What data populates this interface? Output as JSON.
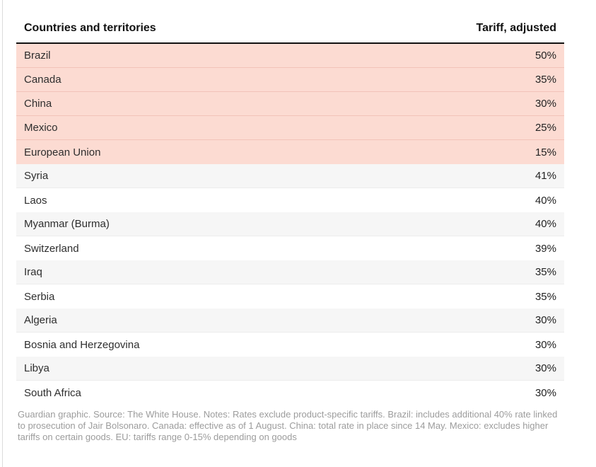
{
  "table": {
    "columns": [
      "Countries and territories",
      "Tariff, adjusted"
    ],
    "rows": [
      {
        "country": "Brazil",
        "tariff": "50%",
        "highlight": true
      },
      {
        "country": "Canada",
        "tariff": "35%",
        "highlight": true
      },
      {
        "country": "China",
        "tariff": "30%",
        "highlight": true
      },
      {
        "country": "Mexico",
        "tariff": "25%",
        "highlight": true
      },
      {
        "country": "European Union",
        "tariff": "15%",
        "highlight": true
      },
      {
        "country": "Syria",
        "tariff": "41%",
        "highlight": false
      },
      {
        "country": "Laos",
        "tariff": "40%",
        "highlight": false
      },
      {
        "country": "Myanmar (Burma)",
        "tariff": "40%",
        "highlight": false
      },
      {
        "country": "Switzerland",
        "tariff": "39%",
        "highlight": false
      },
      {
        "country": "Iraq",
        "tariff": "35%",
        "highlight": false
      },
      {
        "country": "Serbia",
        "tariff": "35%",
        "highlight": false
      },
      {
        "country": "Algeria",
        "tariff": "30%",
        "highlight": false
      },
      {
        "country": "Bosnia and Herzegovina",
        "tariff": "30%",
        "highlight": false
      },
      {
        "country": "Libya",
        "tariff": "30%",
        "highlight": false
      },
      {
        "country": "South Africa",
        "tariff": "30%",
        "highlight": false
      }
    ]
  },
  "chart_data": {
    "type": "table",
    "title": "",
    "categories": [
      "Brazil",
      "Canada",
      "China",
      "Mexico",
      "European Union",
      "Syria",
      "Laos",
      "Myanmar (Burma)",
      "Switzerland",
      "Iraq",
      "Serbia",
      "Algeria",
      "Bosnia and Herzegovina",
      "Libya",
      "South Africa"
    ],
    "values": [
      50,
      35,
      30,
      25,
      15,
      41,
      40,
      40,
      39,
      35,
      35,
      30,
      30,
      30,
      30
    ],
    "series_name": "Tariff, adjusted (%)",
    "highlighted_categories": [
      "Brazil",
      "Canada",
      "China",
      "Mexico",
      "European Union"
    ]
  },
  "footer": {
    "note": "Guardian graphic. Source: The White House. Notes: Rates exclude product-specific tariffs. Brazil: includes additional 40% rate linked to prosecution of Jair Bolsonaro. Canada: effective as of 1 August. China: total rate in place since 14 May. Mexico: excludes higher tariffs on certain goods. EU: tariffs range 0-15% depending on goods"
  },
  "colors": {
    "highlight_pink": "#fcdbd2",
    "highlight_pink_border": "#f2c3b9",
    "row_alt_gray": "#f6f6f6",
    "header_rule": "#121212",
    "note_text": "#9c9c9c",
    "left_rule": "#dcdcdc"
  }
}
